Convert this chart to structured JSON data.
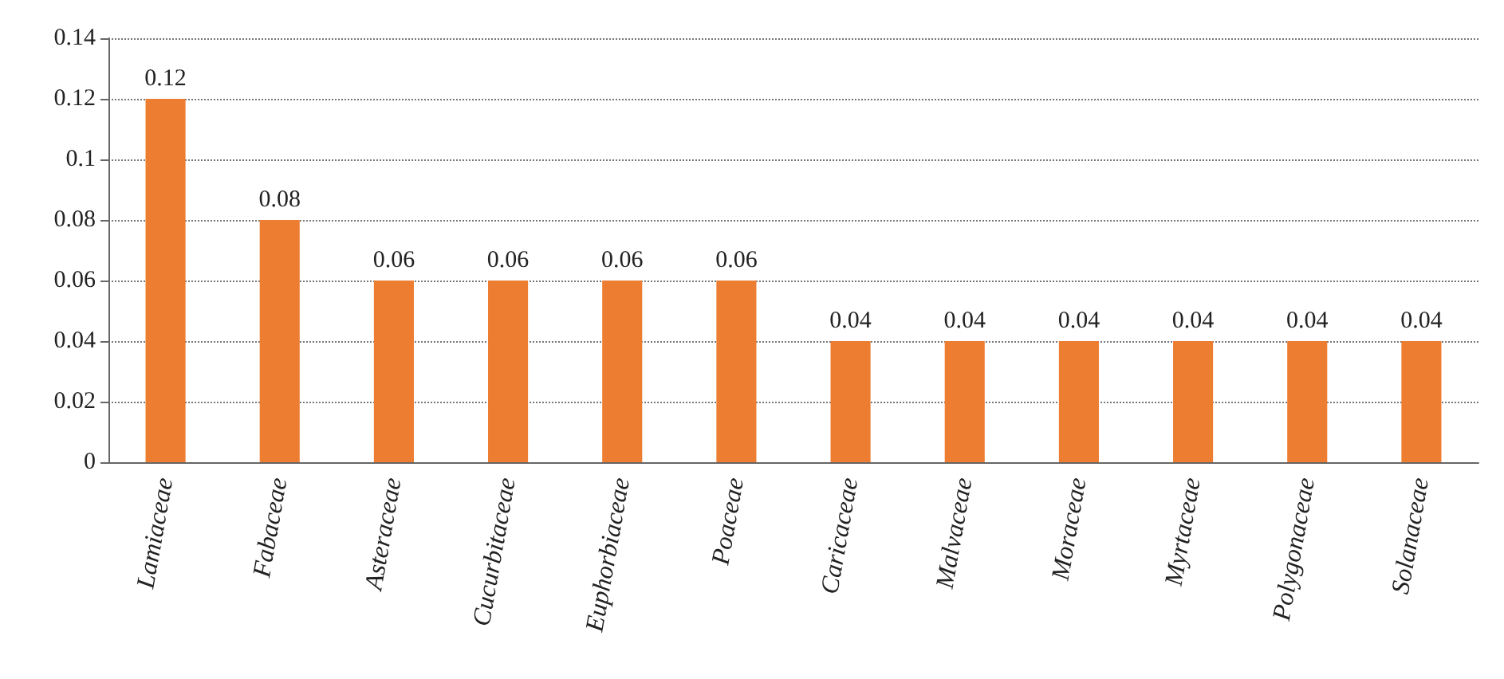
{
  "chart_data": {
    "type": "bar",
    "categories": [
      "Lamiaceae",
      "Fabaceae",
      "Asteraceae",
      "Cucurbitaceae",
      "Euphorbiaceae",
      "Poaceae",
      "Caricaceae",
      "Malvaceae",
      "Moraceae",
      "Myrtaceae",
      "Polygonaceae",
      "Solanaceae"
    ],
    "values": [
      0.12,
      0.08,
      0.06,
      0.06,
      0.06,
      0.06,
      0.04,
      0.04,
      0.04,
      0.04,
      0.04,
      0.04
    ],
    "color": "#ed7d31",
    "ylim": [
      0,
      0.14
    ],
    "yticks": [
      0,
      0.02,
      0.04,
      0.06,
      0.08,
      0.1,
      0.12,
      0.14
    ],
    "grid": "y",
    "data_labels": true
  }
}
